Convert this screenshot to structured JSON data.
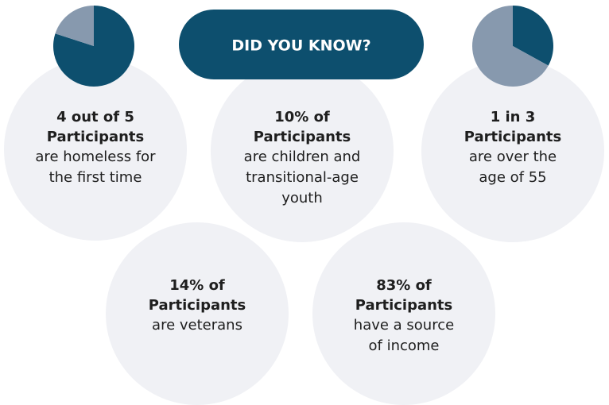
{
  "header": {
    "title": "DID YOU KNOW?"
  },
  "facts": [
    {
      "bold": [
        "4 out of 5",
        "Participants"
      ],
      "text": [
        "are homeless for",
        "the first time"
      ],
      "pie": {
        "values": [
          80,
          20
        ],
        "colors": [
          "#0d4f6e",
          "#8799ae"
        ]
      }
    },
    {
      "bold": [
        "10% of",
        "Participants"
      ],
      "text": [
        "are children and",
        "transitional-age",
        "youth"
      ]
    },
    {
      "bold": [
        "1 in 3",
        "Participants"
      ],
      "text": [
        "are over the",
        "age of 55"
      ],
      "pie": {
        "values": [
          33,
          67
        ],
        "colors": [
          "#0d4f6e",
          "#8799ae"
        ]
      }
    },
    {
      "bold": [
        "14% of",
        "Participants"
      ],
      "text": [
        "are veterans"
      ]
    },
    {
      "bold": [
        "83% of",
        "Participants"
      ],
      "text": [
        "have a source",
        "of income"
      ]
    }
  ]
}
